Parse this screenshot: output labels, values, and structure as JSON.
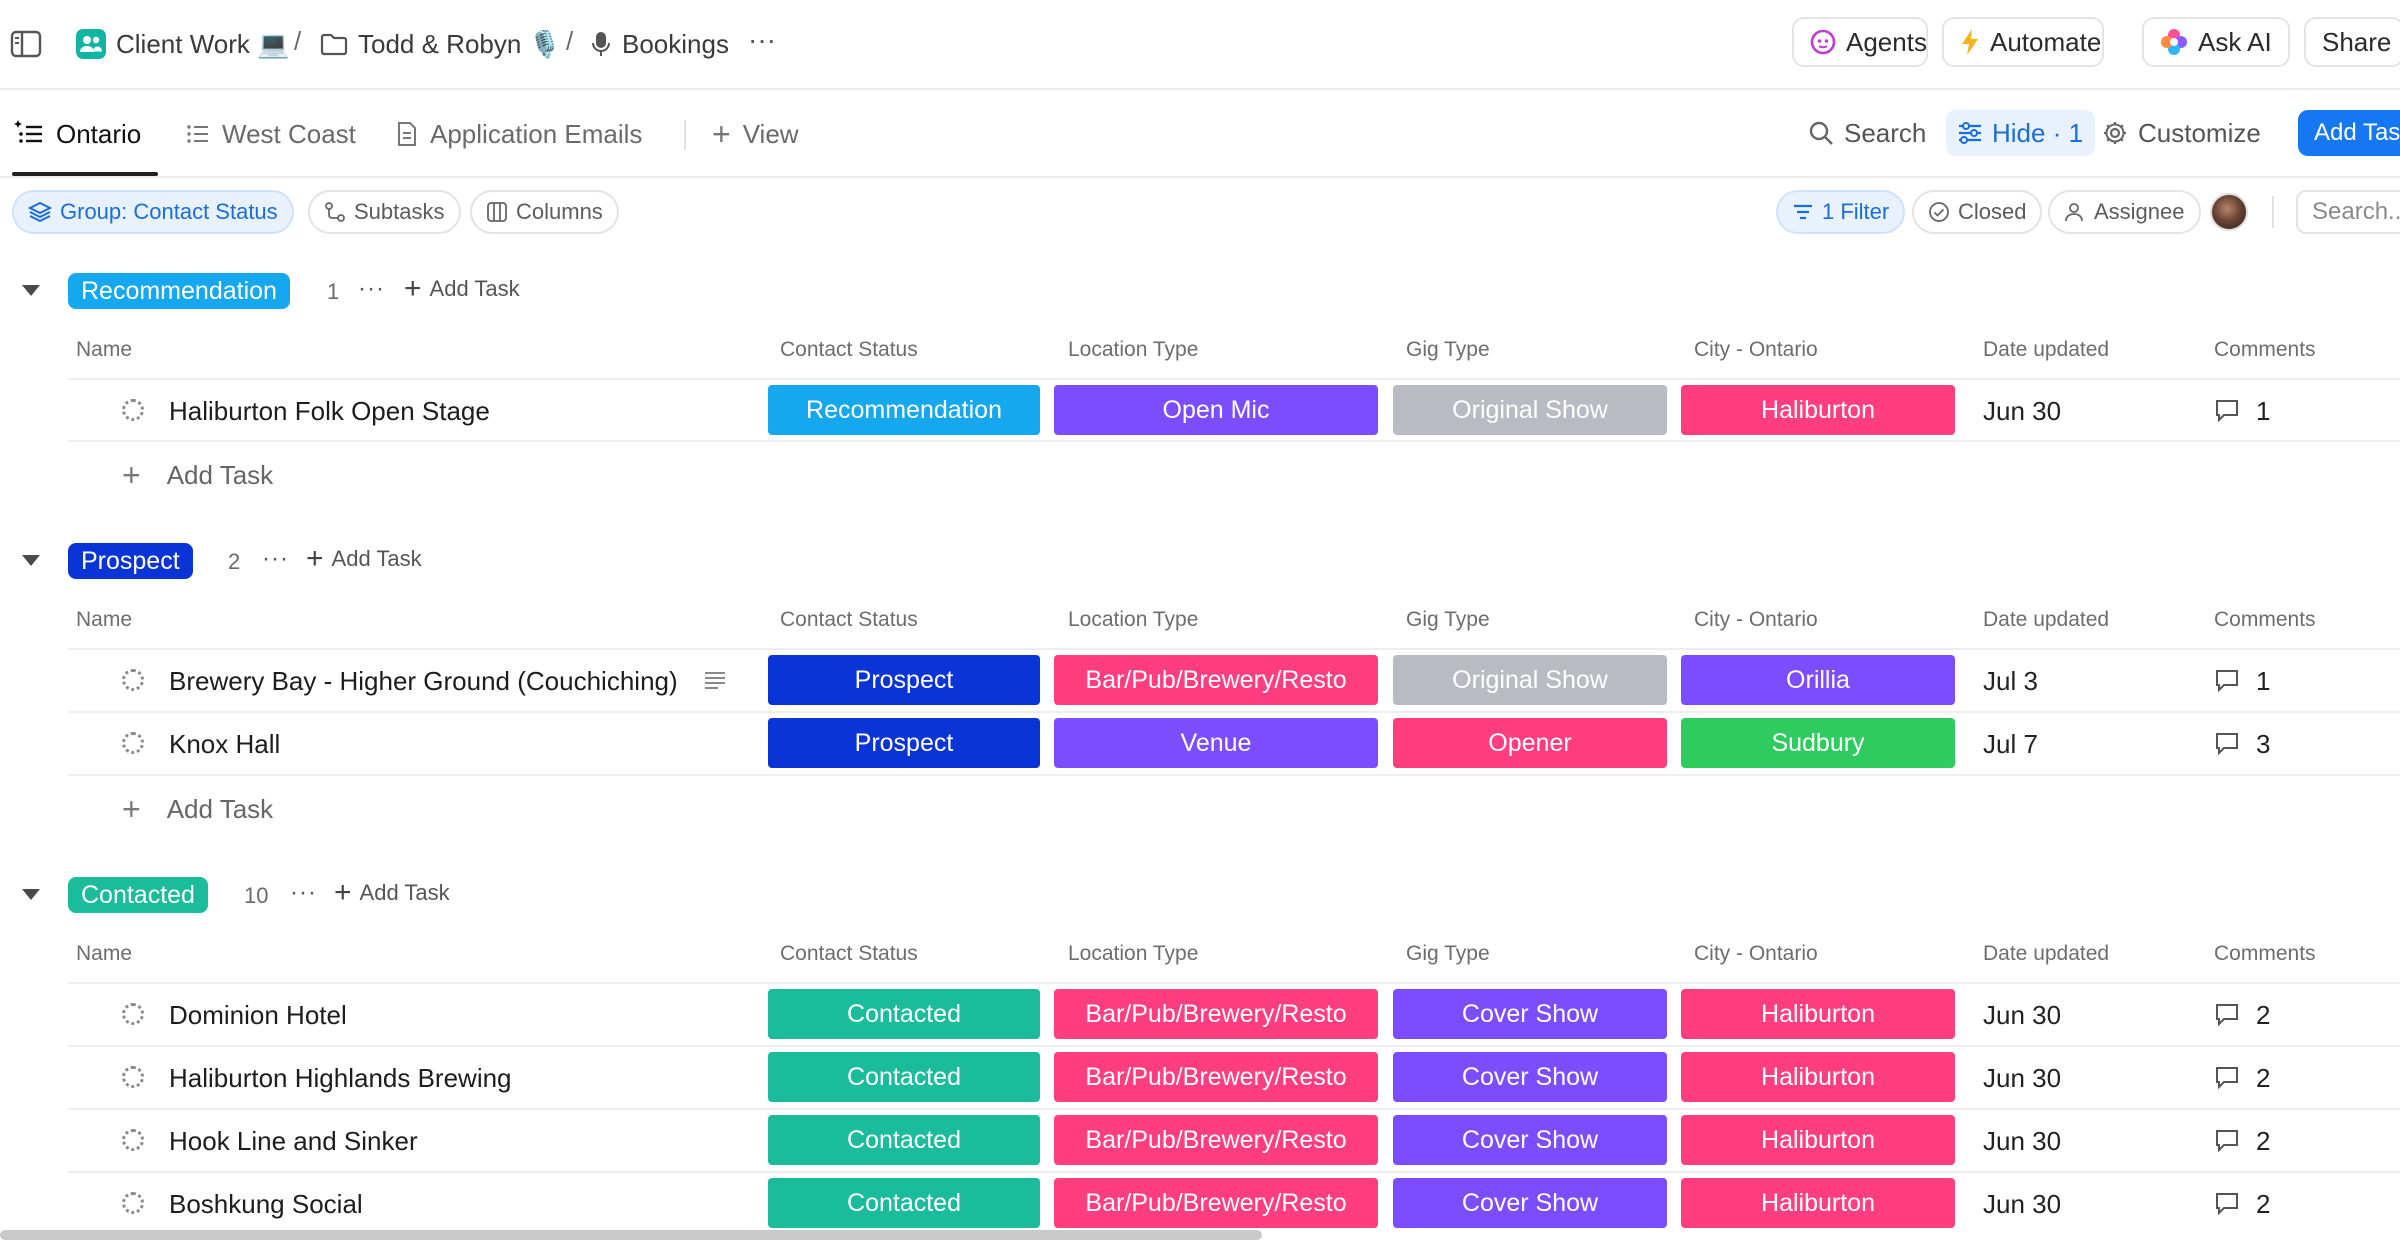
{
  "breadcrumb": {
    "items": [
      {
        "label": "Client Work 💻",
        "icon": "team-space-icon"
      },
      {
        "label": "Todd & Robyn 🎙️",
        "icon": "folder-icon"
      },
      {
        "label": "Bookings",
        "icon": "microphone-icon"
      }
    ],
    "separator": "/",
    "more": "···"
  },
  "topbar_actions": {
    "agents": "Agents",
    "automate": "Automate",
    "ask_ai": "Ask AI",
    "share": "Share"
  },
  "views": {
    "tabs": [
      {
        "label": "Ontario",
        "icon": "list-icon",
        "active": true
      },
      {
        "label": "West Coast",
        "icon": "list-icon",
        "active": false
      },
      {
        "label": "Application Emails",
        "icon": "document-icon",
        "active": false
      }
    ],
    "add_view": "View"
  },
  "view_tools": {
    "search": "Search",
    "hide": "Hide · 1",
    "customize": "Customize",
    "add_task": "Add Task"
  },
  "filters": {
    "group": "Group: Contact Status",
    "subtasks": "Subtasks",
    "columns": "Columns",
    "filter": "1 Filter",
    "closed": "Closed",
    "assignee": "Assignee",
    "search_placeholder": "Search..."
  },
  "columns": {
    "name": "Name",
    "contact_status": "Contact Status",
    "location_type": "Location Type",
    "gig_type": "Gig Type",
    "city": "City - Ontario",
    "date_updated": "Date updated",
    "comments": "Comments"
  },
  "add_task_label": "Add Task",
  "colors": {
    "recommendation": "#16a8ef",
    "prospect": "#0b34d6",
    "contacted": "#1abc9c",
    "open_mic": "#7c4dff",
    "venue": "#7c4dff",
    "bar_pub": "#ff3d7f",
    "original_show": "#b8bcc2",
    "opener": "#ff3d7f",
    "cover_show": "#7c4dff",
    "haliburton": "#ff3d7f",
    "orillia": "#7c4dff",
    "sudbury": "#2ecc5f",
    "primary": "#1577f2"
  },
  "groups": [
    {
      "name": "Recommendation",
      "count": "1",
      "more": "···",
      "add_task": "Add Task",
      "tasks": [
        {
          "name": "Haliburton Folk Open Stage",
          "status": "Recommendation",
          "location": "Open Mic",
          "gig": "Original Show",
          "city": "Haliburton",
          "date": "Jun 30",
          "comments": "1"
        }
      ],
      "add_row": "Add Task"
    },
    {
      "name": "Prospect",
      "count": "2",
      "more": "···",
      "add_task": "Add Task",
      "tasks": [
        {
          "name": "Brewery Bay - Higher Ground (Couchiching)",
          "status": "Prospect",
          "location": "Bar/Pub/Brewery/Resto",
          "gig": "Original Show",
          "city": "Orillia",
          "date": "Jul 3",
          "comments": "1",
          "has_description": true
        },
        {
          "name": "Knox Hall",
          "status": "Prospect",
          "location": "Venue",
          "gig": "Opener",
          "city": "Sudbury",
          "date": "Jul 7",
          "comments": "3"
        }
      ],
      "add_row": "Add Task"
    },
    {
      "name": "Contacted",
      "count": "10",
      "more": "···",
      "add_task": "Add Task",
      "tasks": [
        {
          "name": "Dominion Hotel",
          "status": "Contacted",
          "location": "Bar/Pub/Brewery/Resto",
          "gig": "Cover Show",
          "city": "Haliburton",
          "date": "Jun 30",
          "comments": "2"
        },
        {
          "name": "Haliburton Highlands Brewing",
          "status": "Contacted",
          "location": "Bar/Pub/Brewery/Resto",
          "gig": "Cover Show",
          "city": "Haliburton",
          "date": "Jun 30",
          "comments": "2"
        },
        {
          "name": "Hook Line and Sinker",
          "status": "Contacted",
          "location": "Bar/Pub/Brewery/Resto",
          "gig": "Cover Show",
          "city": "Haliburton",
          "date": "Jun 30",
          "comments": "2"
        },
        {
          "name": "Boshkung Social",
          "status": "Contacted",
          "location": "Bar/Pub/Brewery/Resto",
          "gig": "Cover Show",
          "city": "Haliburton",
          "date": "Jun 30",
          "comments": "2"
        }
      ]
    }
  ]
}
